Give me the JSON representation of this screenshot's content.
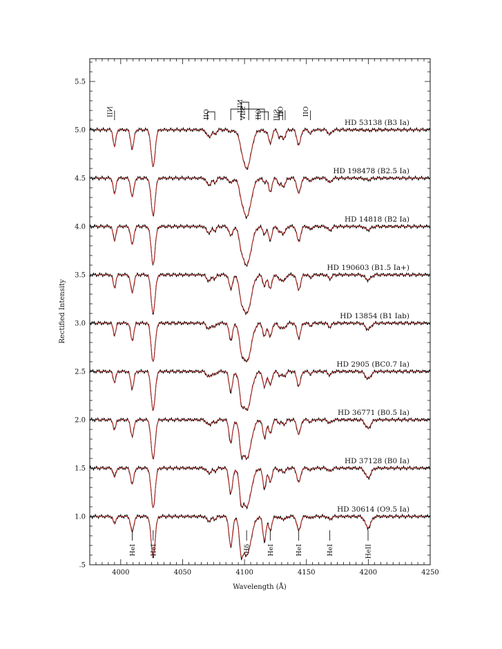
{
  "chart_data": {
    "type": "line",
    "xlabel": "Wavelength (Å)",
    "ylabel": "Rectified Intensity",
    "xlim": [
      3975,
      4250
    ],
    "ylim": [
      0.5,
      5.75
    ],
    "xticks": [
      "4000",
      "4050",
      "4100",
      "4150",
      "4200",
      "4250"
    ],
    "yticks": [
      ".5",
      "1.0",
      "1.5",
      "2.0",
      "2.5",
      "3.0",
      "3.5",
      "4.0",
      "4.5",
      "5.0",
      "5.5"
    ],
    "series": [
      {
        "name": "HD 53138 (B3 Ia)",
        "offset": 5.0,
        "strength": 0.05
      },
      {
        "name": "HD 198478 (B2.5 Ia)",
        "offset": 4.5,
        "strength": 0.15
      },
      {
        "name": "HD 14818 (B2 Ia)",
        "offset": 4.0,
        "strength": 0.3
      },
      {
        "name": "HD 190603 (B1.5 Ia+)",
        "offset": 3.5,
        "strength": 0.45
      },
      {
        "name": "HD 13854 (B1 Iab)",
        "offset": 3.0,
        "strength": 0.55
      },
      {
        "name": "HD 2905 (BC0.7 Ia)",
        "offset": 2.5,
        "strength": 0.65
      },
      {
        "name": "HD 36771 (B0.5 Ia)",
        "offset": 2.0,
        "strength": 0.75
      },
      {
        "name": "HD 37128 (B0 Ia)",
        "offset": 1.5,
        "strength": 0.85
      },
      {
        "name": "HD 30614 (O9.5 Ia)",
        "offset": 1.0,
        "strength": 1.0
      }
    ],
    "lower_line_ids": [
      {
        "label": "HeI",
        "x": 4009.3
      },
      {
        "label": "HeI",
        "x": 4026.2
      },
      {
        "label": "Hδ",
        "x": 4101.7
      },
      {
        "label": "HeI",
        "x": 4120.8
      },
      {
        "label": "HeI",
        "x": 4143.8
      },
      {
        "label": "HeI",
        "x": 4168.9
      },
      {
        "label": "HeII",
        "x": 4199.8
      }
    ],
    "upper_line_ids": [
      {
        "label": "NII",
        "x": 3995.0
      },
      {
        "label": "OII",
        "x": 4070.0,
        "x2": 4076.0
      },
      {
        "label": "SiIV",
        "x": 4088.9,
        "x2": 4116.1
      },
      {
        "label": "NIII",
        "x": 4097.3,
        "x2": 4103.4
      },
      {
        "label": "OII",
        "x": 4110.8,
        "x2": 4119.2
      },
      {
        "label": "SiII",
        "x": 4128.1,
        "x2": 4130.9
      },
      {
        "label": "OII",
        "x": 4132.8
      },
      {
        "label": "OII",
        "x": 4153.3
      }
    ],
    "colors": {
      "observed": "#000000",
      "model": "#c0302a"
    },
    "grid": false
  }
}
